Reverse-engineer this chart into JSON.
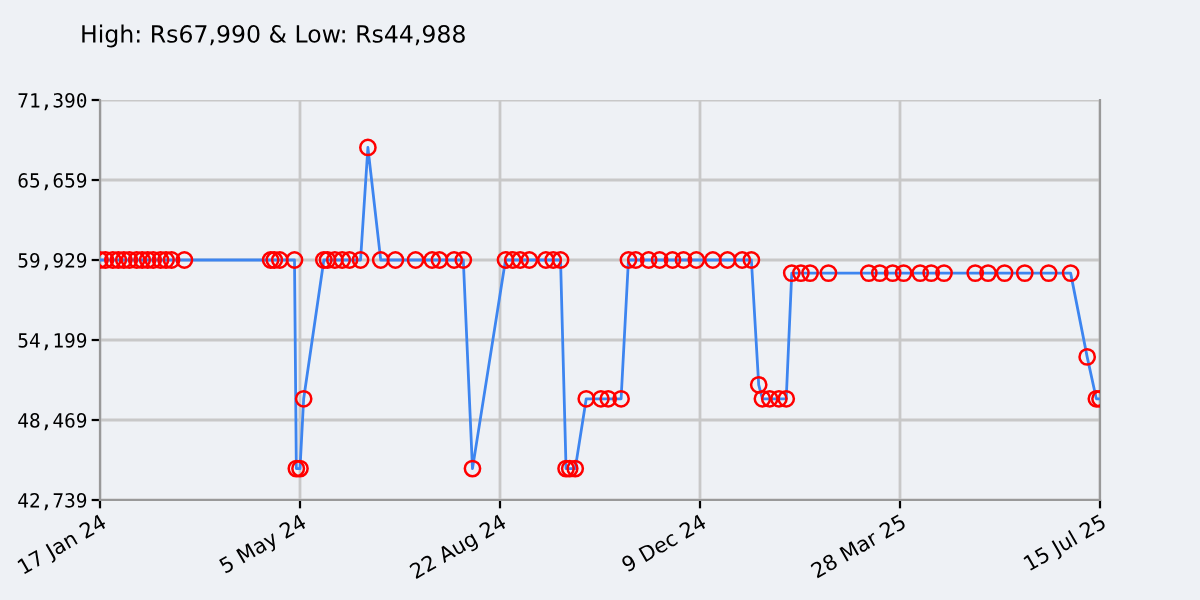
{
  "chart_data": {
    "type": "line",
    "title": "High: Rs67,990 & Low: Rs44,988",
    "x": [
      "2024-01-17",
      "2024-01-20",
      "2024-01-24",
      "2024-01-27",
      "2024-01-30",
      "2024-02-02",
      "2024-02-06",
      "2024-02-09",
      "2024-02-12",
      "2024-02-15",
      "2024-02-19",
      "2024-02-22",
      "2024-02-25",
      "2024-03-03",
      "2024-04-19",
      "2024-04-21",
      "2024-04-24",
      "2024-05-02",
      "2024-05-03",
      "2024-05-05",
      "2024-05-07",
      "2024-05-18",
      "2024-05-20",
      "2024-05-24",
      "2024-05-28",
      "2024-06-01",
      "2024-06-07",
      "2024-06-11",
      "2024-06-18",
      "2024-06-26",
      "2024-07-07",
      "2024-07-16",
      "2024-07-20",
      "2024-07-28",
      "2024-08-02",
      "2024-08-07",
      "2024-08-25",
      "2024-08-29",
      "2024-09-02",
      "2024-09-07",
      "2024-09-16",
      "2024-09-20",
      "2024-09-24",
      "2024-09-27",
      "2024-09-29",
      "2024-10-02",
      "2024-10-08",
      "2024-10-16",
      "2024-10-20",
      "2024-10-27",
      "2024-10-31",
      "2024-11-04",
      "2024-11-11",
      "2024-11-17",
      "2024-11-24",
      "2024-11-30",
      "2024-12-07",
      "2024-12-16",
      "2024-12-24",
      "2025-01-01",
      "2025-01-06",
      "2025-01-10",
      "2025-01-12",
      "2025-01-16",
      "2025-01-21",
      "2025-01-25",
      "2025-01-28",
      "2025-02-02",
      "2025-02-07",
      "2025-02-17",
      "2025-03-11",
      "2025-03-17",
      "2025-03-24",
      "2025-03-30",
      "2025-04-08",
      "2025-04-14",
      "2025-04-21",
      "2025-05-08",
      "2025-05-15",
      "2025-05-24",
      "2025-06-04",
      "2025-06-17",
      "2025-06-29",
      "2025-07-08",
      "2025-07-13",
      "2025-07-15"
    ],
    "series": [
      {
        "color": "#3d85f0",
        "values": [
          59929,
          59929,
          59929,
          59929,
          59929,
          59929,
          59929,
          59929,
          59929,
          59929,
          59929,
          59929,
          59929,
          59929,
          59929,
          59929,
          59929,
          59929,
          44988,
          44988,
          49990,
          59929,
          59929,
          59929,
          59929,
          59929,
          59929,
          67990,
          59929,
          59929,
          59929,
          59929,
          59929,
          59929,
          59929,
          44988,
          59929,
          59929,
          59929,
          59929,
          59929,
          59929,
          59929,
          44988,
          44988,
          44988,
          49990,
          49990,
          49990,
          49990,
          59929,
          59929,
          59929,
          59929,
          59929,
          59929,
          59929,
          59929,
          59929,
          59929,
          59929,
          50990,
          49990,
          49990,
          49990,
          49990,
          58990,
          58990,
          58990,
          58990,
          58990,
          58990,
          58990,
          58990,
          58990,
          58990,
          58990,
          58990,
          58990,
          58990,
          58990,
          58990,
          58990,
          52990,
          49990,
          49990
        ]
      }
    ],
    "xlim": [
      "2024-01-17",
      "2025-07-15"
    ],
    "xticks": [
      {
        "value": "2024-01-17",
        "label": "17 Jan 24"
      },
      {
        "value": "2024-05-05",
        "label": "5 May 24"
      },
      {
        "value": "2024-08-22",
        "label": "22 Aug 24"
      },
      {
        "value": "2024-12-09",
        "label": "9 Dec 24"
      },
      {
        "value": "2025-03-28",
        "label": "28 Mar 25"
      },
      {
        "value": "2025-07-15",
        "label": "15 Jul 25"
      }
    ],
    "ylim": [
      42739,
      71390
    ],
    "yticks": [
      {
        "value": 42739,
        "label": "42,739"
      },
      {
        "value": 48469,
        "label": "48,469"
      },
      {
        "value": 54199,
        "label": "54,199"
      },
      {
        "value": 59929,
        "label": "59,929"
      },
      {
        "value": 65659,
        "label": "65,659"
      },
      {
        "value": 71390,
        "label": "71,390"
      }
    ],
    "grid": true,
    "marker": "circle",
    "line_style": "solid"
  }
}
